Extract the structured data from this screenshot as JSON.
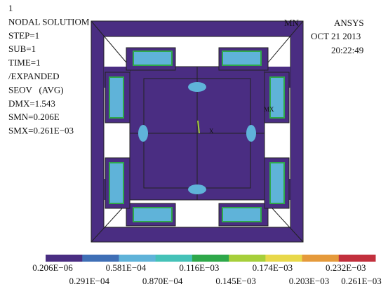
{
  "header": {
    "lines": [
      "1",
      "NODAL SOLUTIOM",
      "STEP=1",
      "SUB=1",
      "TIME=1",
      "/EXPANDED",
      "SEOV   (AVG)",
      "DMX=1.543",
      "SMN=0.206E",
      "SMX=0.261E−03"
    ],
    "mn": "MN",
    "brand": "ANSYS",
    "date": "OCT 21 2013",
    "time": "20:22:49"
  },
  "model": {
    "mx": "MX",
    "origin": "X"
  },
  "legend": {
    "colors": [
      "#4a2d82",
      "#3f6fb6",
      "#5fb3d9",
      "#45c2b8",
      "#2ea84a",
      "#a6cf3a",
      "#e8d84a",
      "#e59a3b",
      "#c2303d"
    ],
    "labels": [
      "0.206E−06",
      "0.291E−04",
      "0.581E−04",
      "0.870E−04",
      "0.116E−03",
      "0.145E−03",
      "0.174E−03",
      "0.203E−03",
      "0.232E−03",
      "0.261E−03"
    ]
  }
}
